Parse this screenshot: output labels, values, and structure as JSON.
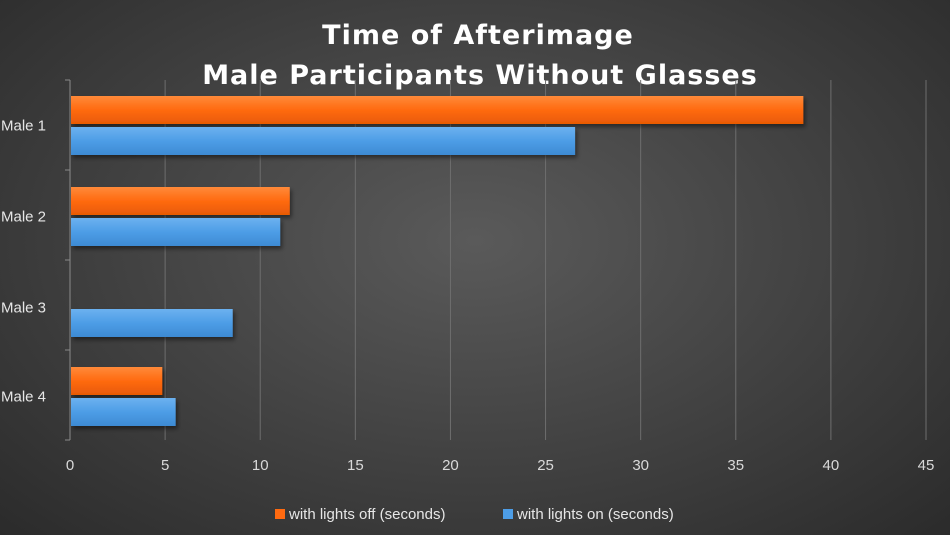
{
  "chart_data": {
    "type": "bar",
    "orientation": "horizontal",
    "title": [
      "Time of Afterimage",
      "Male Participants Without Glasses"
    ],
    "categories": [
      "Male 1",
      "Male 2",
      "Male 3",
      "Male 4"
    ],
    "series": [
      {
        "name": "with lights off (seconds)",
        "color": "#ff6a10",
        "values": [
          38.5,
          11.5,
          0,
          4.8
        ]
      },
      {
        "name": "with lights on (seconds)",
        "color": "#4d9de6",
        "values": [
          26.5,
          11,
          8.5,
          5.5
        ]
      }
    ],
    "xlim": [
      0,
      45
    ],
    "xticks": [
      0,
      5,
      10,
      15,
      20,
      25,
      30,
      35,
      40,
      45
    ],
    "grid": true,
    "legend_position": "bottom"
  }
}
